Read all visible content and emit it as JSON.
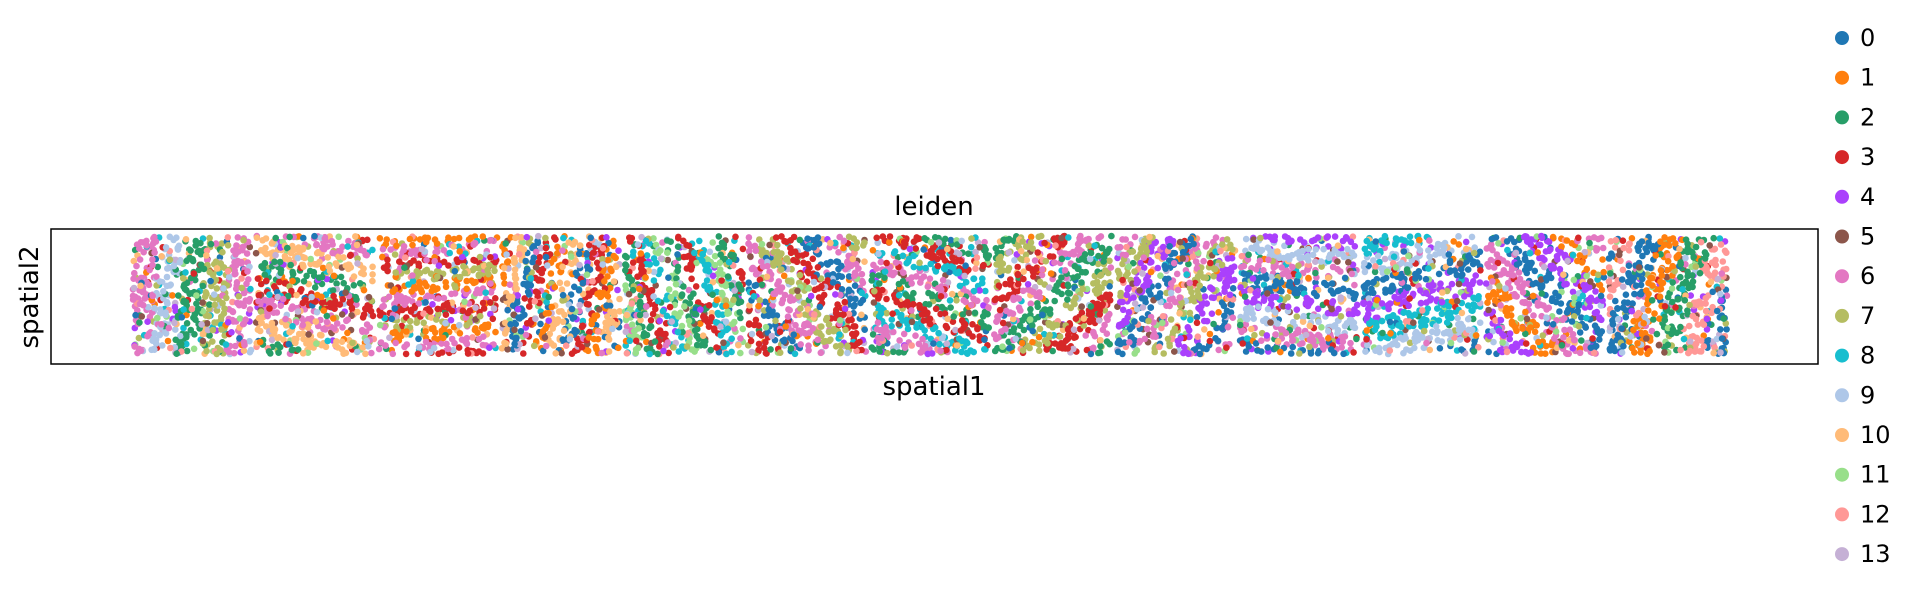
{
  "chart_data": {
    "type": "scatter",
    "title": "leiden",
    "xlabel": "spatial1",
    "ylabel": "spatial2",
    "grid": false,
    "legend_position": "right, outside plot",
    "axis_ticks": false,
    "num_tiles": 13,
    "series": [
      {
        "name": "0",
        "color": "#1f77b4"
      },
      {
        "name": "1",
        "color": "#ff7f0e"
      },
      {
        "name": "2",
        "color": "#279e68"
      },
      {
        "name": "3",
        "color": "#d62728"
      },
      {
        "name": "4",
        "color": "#aa40fc"
      },
      {
        "name": "5",
        "color": "#8c564b"
      },
      {
        "name": "6",
        "color": "#e377c2"
      },
      {
        "name": "7",
        "color": "#b5bd61"
      },
      {
        "name": "8",
        "color": "#17becf"
      },
      {
        "name": "9",
        "color": "#aec7e8"
      },
      {
        "name": "10",
        "color": "#ffbb78"
      },
      {
        "name": "11",
        "color": "#98df8a"
      },
      {
        "name": "12",
        "color": "#ff9896"
      },
      {
        "name": "13",
        "color": "#c5b0d5"
      }
    ]
  }
}
